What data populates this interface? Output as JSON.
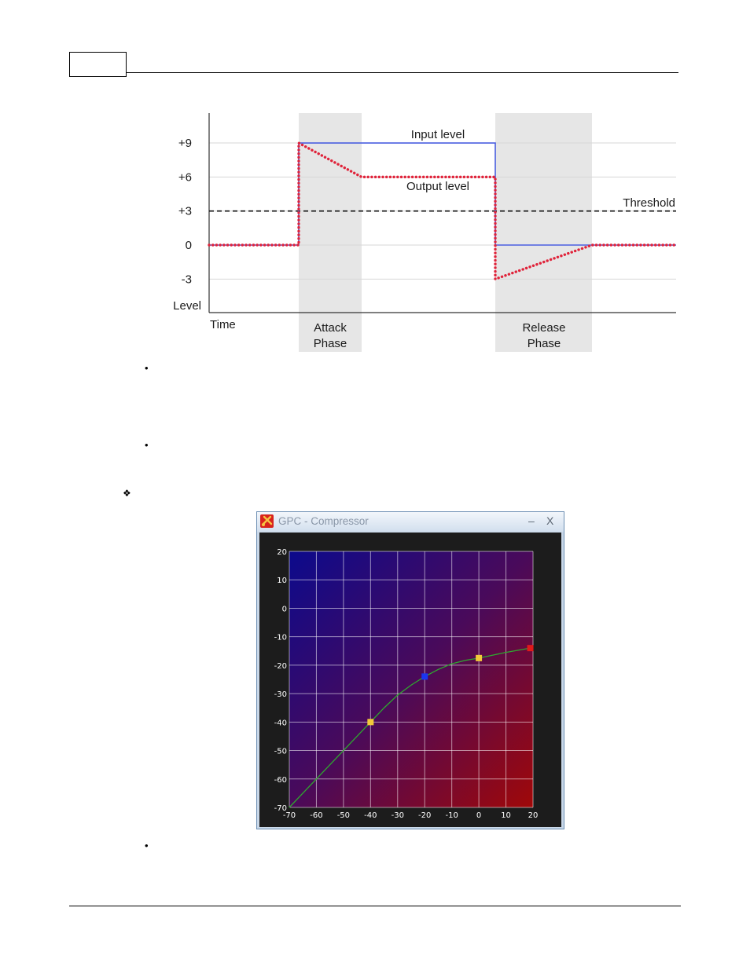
{
  "timing_diagram": {
    "y_axis_label": "Level",
    "x_axis_label": "Time",
    "y_ticks": [
      "+9",
      "+6",
      "+3",
      "0",
      "-3"
    ],
    "y_tick_values": [
      9,
      6,
      3,
      0,
      -3
    ],
    "threshold": 3,
    "threshold_label": "Threshold",
    "input_label": "Input level",
    "output_label": "Output level",
    "attack_label_1": "Attack",
    "attack_label_2": "Phase",
    "release_label_1": "Release",
    "release_label_2": "Phase",
    "colors": {
      "input": "#4a5fe0",
      "output": "#e0233a",
      "phase_band": "#e6e6e6",
      "grid": "#d7d7d7"
    }
  },
  "compressor_window": {
    "title": "GPC - Compressor",
    "minimize_glyph": "–",
    "close_glyph": "X",
    "icon": "gpc-app-icon"
  },
  "chart_data": {
    "type": "line",
    "x_ticks": [
      "-70",
      "-60",
      "-50",
      "-40",
      "-30",
      "-20",
      "-10",
      "0",
      "10",
      "20"
    ],
    "y_ticks": [
      "20",
      "10",
      "0",
      "-10",
      "-20",
      "-30",
      "-40",
      "-50",
      "-60",
      "-70"
    ],
    "xlim": [
      -70,
      20
    ],
    "ylim": [
      -70,
      20
    ],
    "curve": [
      {
        "x": -70,
        "y": -70
      },
      {
        "x": -60,
        "y": -60
      },
      {
        "x": -50,
        "y": -50
      },
      {
        "x": -40,
        "y": -40
      },
      {
        "x": -35,
        "y": -35
      },
      {
        "x": -30,
        "y": -30.5
      },
      {
        "x": -25,
        "y": -27
      },
      {
        "x": -20,
        "y": -24
      },
      {
        "x": -15,
        "y": -21.5
      },
      {
        "x": -10,
        "y": -19.5
      },
      {
        "x": -5,
        "y": -18.3
      },
      {
        "x": 0,
        "y": -17.5
      },
      {
        "x": 10,
        "y": -15.5
      },
      {
        "x": 19,
        "y": -14
      }
    ],
    "control_points": [
      {
        "x": -40,
        "y": -40,
        "color": "#f2c93a"
      },
      {
        "x": -20,
        "y": -24,
        "color": "#1a35f0"
      },
      {
        "x": 0,
        "y": -17.5,
        "color": "#f2c93a"
      },
      {
        "x": 19,
        "y": -14,
        "color": "#e01a1a"
      }
    ],
    "grid": true,
    "colors": {
      "curve": "#2fa82f",
      "grid": "#ffffff"
    }
  }
}
